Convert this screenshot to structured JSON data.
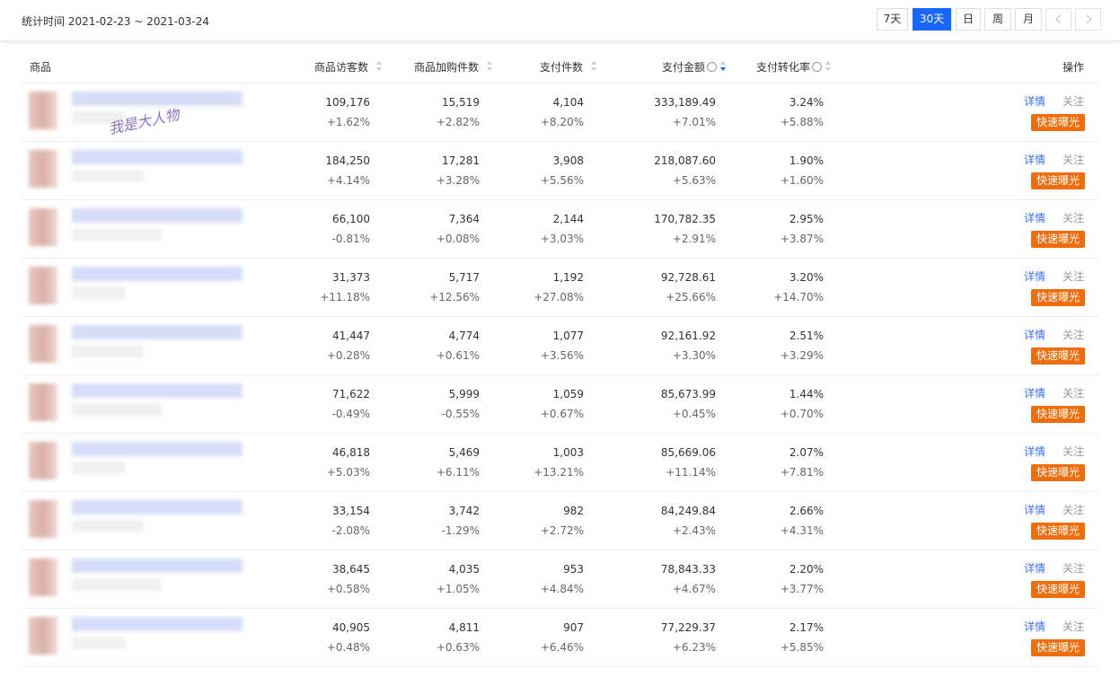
{
  "header": {
    "date_label": "统计时间 2021-02-23 ~ 2021-03-24",
    "ranges": [
      "7天",
      "30天",
      "日",
      "周",
      "月"
    ]
  },
  "table": {
    "columns": [
      "商品",
      "商品访客数",
      "商品加购件数",
      "支付件数",
      "支付金额",
      "支付转化率",
      "操作"
    ],
    "actions": [
      "详情",
      "关注",
      "快速曝光"
    ],
    "watermark": "我是大人物",
    "rows": [
      [
        [
          "109,176",
          "+1.62%"
        ],
        [
          "15,519",
          "+2.82%"
        ],
        [
          "4,104",
          "+8.20%"
        ],
        [
          "333,189.49",
          "+7.01%"
        ],
        [
          "3.24%",
          "+5.88%"
        ]
      ],
      [
        [
          "184,250",
          "+4.14%"
        ],
        [
          "17,281",
          "+3.28%"
        ],
        [
          "3,908",
          "+5.56%"
        ],
        [
          "218,087.60",
          "+5.63%"
        ],
        [
          "1.90%",
          "+1.60%"
        ]
      ],
      [
        [
          "66,100",
          "-0.81%"
        ],
        [
          "7,364",
          "+0.08%"
        ],
        [
          "2,144",
          "+3.03%"
        ],
        [
          "170,782.35",
          "+2.91%"
        ],
        [
          "2.95%",
          "+3.87%"
        ]
      ],
      [
        [
          "31,373",
          "+11.18%"
        ],
        [
          "5,717",
          "+12.56%"
        ],
        [
          "1,192",
          "+27.08%"
        ],
        [
          "92,728.61",
          "+25.66%"
        ],
        [
          "3.20%",
          "+14.70%"
        ]
      ],
      [
        [
          "41,447",
          "+0.28%"
        ],
        [
          "4,774",
          "+0.61%"
        ],
        [
          "1,077",
          "+3.56%"
        ],
        [
          "92,161.92",
          "+3.30%"
        ],
        [
          "2.51%",
          "+3.29%"
        ]
      ],
      [
        [
          "71,622",
          "-0.49%"
        ],
        [
          "5,999",
          "-0.55%"
        ],
        [
          "1,059",
          "+0.67%"
        ],
        [
          "85,673.99",
          "+0.45%"
        ],
        [
          "1.44%",
          "+0.70%"
        ]
      ],
      [
        [
          "46,818",
          "+5.03%"
        ],
        [
          "5,469",
          "+6.11%"
        ],
        [
          "1,003",
          "+13.21%"
        ],
        [
          "85,669.06",
          "+11.14%"
        ],
        [
          "2.07%",
          "+7.81%"
        ]
      ],
      [
        [
          "33,154",
          "-2.08%"
        ],
        [
          "3,742",
          "-1.29%"
        ],
        [
          "982",
          "+2.72%"
        ],
        [
          "84,249.84",
          "+2.43%"
        ],
        [
          "2.66%",
          "+4.31%"
        ]
      ],
      [
        [
          "38,645",
          "+0.58%"
        ],
        [
          "4,035",
          "+1.05%"
        ],
        [
          "953",
          "+4.84%"
        ],
        [
          "78,843.33",
          "+4.67%"
        ],
        [
          "2.20%",
          "+3.77%"
        ]
      ],
      [
        [
          "40,905",
          "+0.48%"
        ],
        [
          "4,811",
          "+0.63%"
        ],
        [
          "907",
          "+6.46%"
        ],
        [
          "77,229.37",
          "+6.23%"
        ],
        [
          "2.17%",
          "+5.85%"
        ]
      ]
    ]
  }
}
